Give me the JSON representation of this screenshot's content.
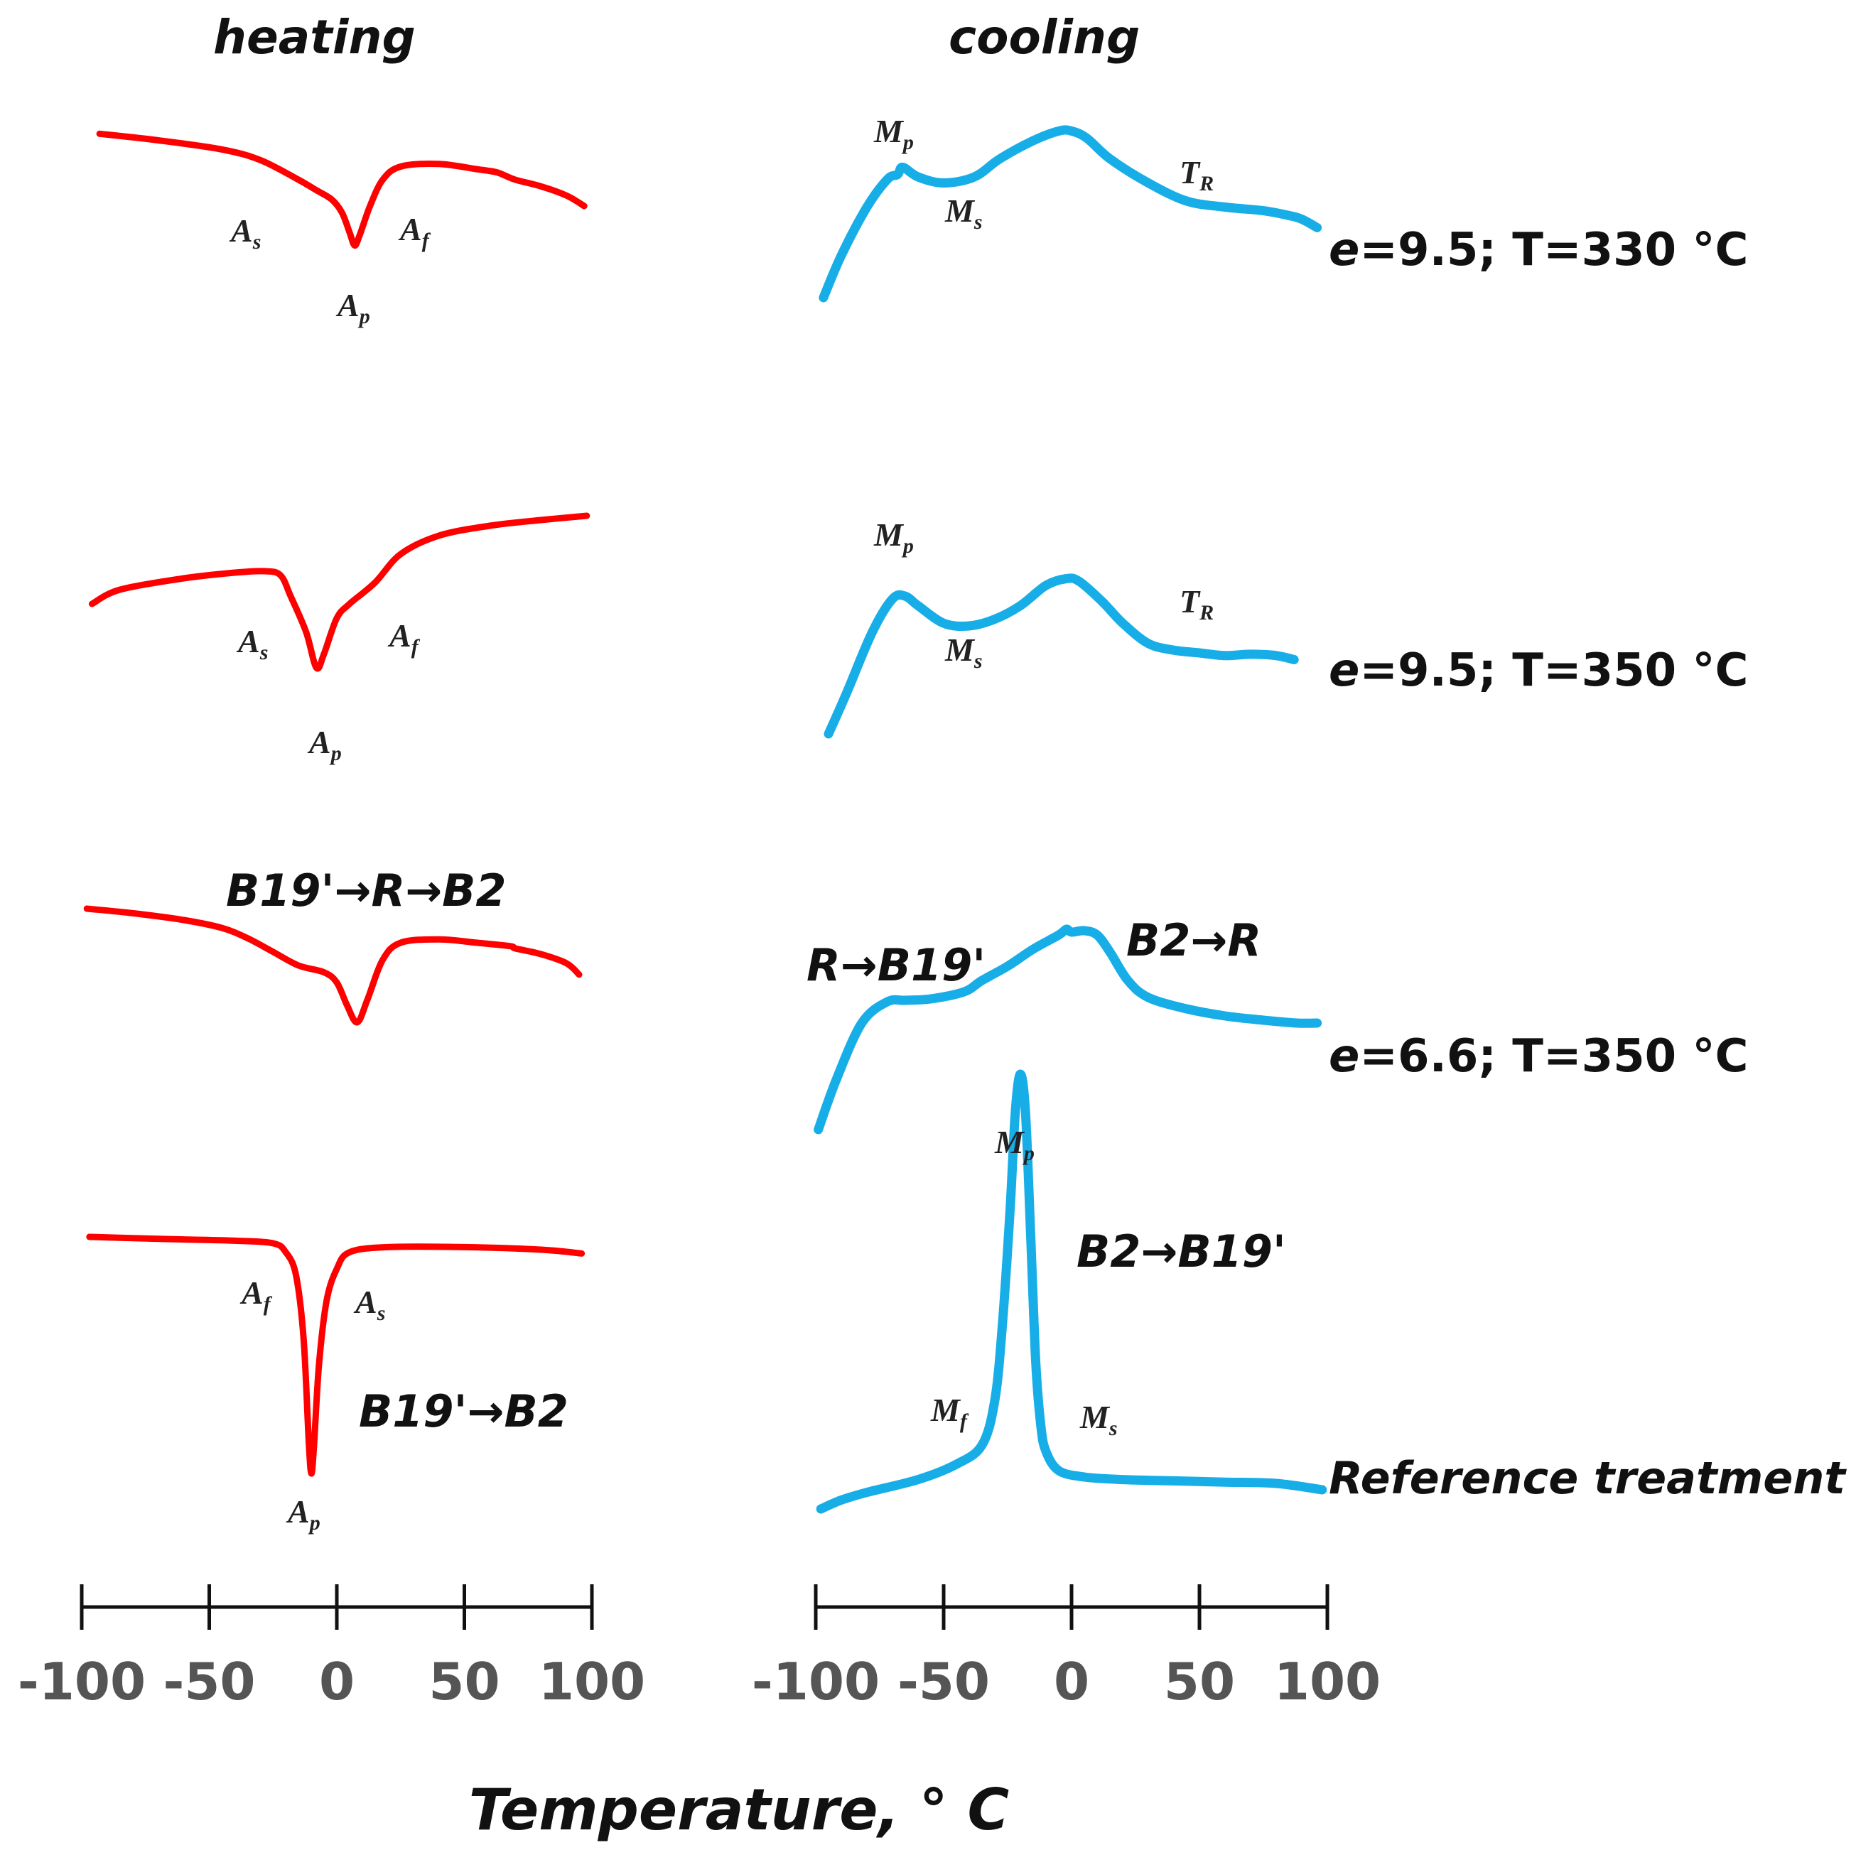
{
  "chart_data": {
    "type": "line",
    "title_left": "heating",
    "title_right": "cooling",
    "xlabel": "Temperature, ° C",
    "xlim": [
      -100,
      100
    ],
    "ticks": [
      "-100",
      "-50",
      "0",
      "50",
      "100"
    ],
    "colors": {
      "heating": "#ff0000",
      "cooling": "#17aee8",
      "axis": "#111111"
    },
    "heating_curves": [
      {
        "name": "heating-1",
        "x": [
          -93,
          -70,
          -45,
          -30,
          -15,
          -8,
          -2,
          2,
          5,
          7,
          9,
          13,
          18,
          25,
          40,
          55,
          62,
          65,
          70,
          80,
          90,
          97
        ],
        "y": [
          0.55,
          0.5,
          0.43,
          0.35,
          0.2,
          0.12,
          0.05,
          -0.05,
          -0.2,
          -0.3,
          -0.22,
          0,
          0.2,
          0.3,
          0.32,
          0.28,
          0.26,
          0.24,
          0.2,
          0.15,
          0.08,
          0.0
        ],
        "labels": [
          "As",
          "Af",
          "Ap"
        ]
      },
      {
        "name": "heating-2",
        "x": [
          -96,
          -85,
          -60,
          -40,
          -28,
          -22,
          -18,
          -12,
          -8,
          -5,
          0,
          5,
          15,
          25,
          40,
          60,
          80,
          98
        ],
        "y": [
          0.1,
          0.2,
          0.28,
          0.32,
          0.33,
          0.3,
          0.15,
          -0.1,
          -0.35,
          -0.25,
          0.0,
          0.1,
          0.25,
          0.45,
          0.58,
          0.65,
          0.69,
          0.72
        ],
        "labels": [
          "As",
          "Af",
          "Ap"
        ]
      },
      {
        "name": "heating-3",
        "x": [
          -98,
          -80,
          -60,
          -45,
          -35,
          -25,
          -15,
          -5,
          0,
          4,
          8,
          12,
          18,
          25,
          40,
          55,
          68,
          70,
          80,
          90,
          95
        ],
        "y": [
          0.6,
          0.56,
          0.5,
          0.43,
          0.34,
          0.22,
          0.1,
          0.04,
          -0.05,
          -0.25,
          -0.4,
          -0.2,
          0.15,
          0.3,
          0.33,
          0.3,
          0.27,
          0.25,
          0.2,
          0.12,
          0.02
        ]
      },
      {
        "name": "heating-4",
        "x": [
          -97,
          -80,
          -60,
          -40,
          -25,
          -20,
          -16,
          -13,
          -11,
          -10,
          -9,
          -7,
          -4,
          0,
          5,
          20,
          50,
          80,
          96
        ],
        "y": [
          0.3,
          0.29,
          0.28,
          0.27,
          0.25,
          0.18,
          0.0,
          -0.5,
          -1.3,
          -1.55,
          -1.35,
          -0.7,
          -0.2,
          0.05,
          0.18,
          0.22,
          0.22,
          0.2,
          0.17
        ],
        "labels": [
          "Af",
          "As",
          "Ap"
        ]
      }
    ],
    "cooling_curves": [
      {
        "name": "cooling-1 e=9.5; T=330 °C",
        "x": [
          -97,
          -90,
          -80,
          -72,
          -68,
          -66,
          -60,
          -50,
          -38,
          -28,
          -15,
          -5,
          0,
          6,
          15,
          30,
          45,
          60,
          75,
          85,
          90,
          96
        ],
        "y": [
          -0.7,
          -0.35,
          0.05,
          0.28,
          0.32,
          0.38,
          0.3,
          0.25,
          0.3,
          0.45,
          0.6,
          0.68,
          0.68,
          0.62,
          0.45,
          0.25,
          0.1,
          0.05,
          0.02,
          -0.02,
          -0.05,
          -0.12
        ],
        "labels": [
          "Mp",
          "Ms",
          "TR"
        ]
      },
      {
        "name": "cooling-2 e=9.5; T=350 °C",
        "x": [
          -95,
          -88,
          -78,
          -70,
          -65,
          -60,
          -50,
          -40,
          -30,
          -20,
          -10,
          -2,
          3,
          12,
          20,
          30,
          40,
          50,
          60,
          70,
          80,
          87
        ],
        "y": [
          -0.7,
          -0.4,
          0.05,
          0.3,
          0.32,
          0.25,
          0.12,
          0.1,
          0.15,
          0.25,
          0.4,
          0.45,
          0.43,
          0.28,
          0.12,
          -0.03,
          -0.08,
          -0.1,
          -0.12,
          -0.11,
          -0.12,
          -0.15
        ],
        "labels": [
          "Mp",
          "Ms",
          "TR"
        ]
      },
      {
        "name": "cooling-3 e=6.6; T=350 °C",
        "x": [
          -99,
          -92,
          -82,
          -72,
          -65,
          -55,
          -42,
          -35,
          -25,
          -15,
          -5,
          -2,
          0,
          5,
          10,
          15,
          22,
          30,
          45,
          60,
          75,
          88,
          96
        ],
        "y": [
          -0.85,
          -0.5,
          -0.1,
          0.05,
          0.06,
          0.07,
          0.12,
          0.2,
          0.3,
          0.42,
          0.52,
          0.56,
          0.54,
          0.55,
          0.52,
          0.4,
          0.2,
          0.08,
          0.0,
          -0.05,
          -0.08,
          -0.1,
          -0.1
        ]
      },
      {
        "name": "cooling-4 Reference treatment",
        "x": [
          -98,
          -90,
          -80,
          -60,
          -45,
          -35,
          -30,
          -27,
          -24,
          -22,
          -20,
          -18,
          -16,
          -14,
          -12,
          -10,
          -5,
          5,
          20,
          40,
          60,
          80,
          98
        ],
        "y": [
          -0.55,
          -0.48,
          -0.42,
          -0.32,
          -0.2,
          -0.05,
          0.3,
          0.9,
          1.8,
          2.55,
          2.85,
          2.55,
          1.6,
          0.6,
          0.1,
          -0.1,
          -0.25,
          -0.3,
          -0.32,
          -0.33,
          -0.34,
          -0.35,
          -0.4
        ],
        "labels": [
          "Mp",
          "Mf",
          "Ms"
        ]
      }
    ],
    "annotations": {
      "conditions": [
        "e=9.5; T=330 °C",
        "e=9.5; T=350 °C",
        "e=6.6; T=350 °C",
        "Reference treatment"
      ],
      "transitions": [
        "B19'→R→B2",
        "B19'→B2",
        "R→B19'",
        "B2→R",
        "B2→B19'"
      ]
    }
  },
  "point_labels": {
    "A": "A",
    "M": "M",
    "T": "T",
    "s": "s",
    "f": "f",
    "p": "p",
    "R": "R"
  }
}
